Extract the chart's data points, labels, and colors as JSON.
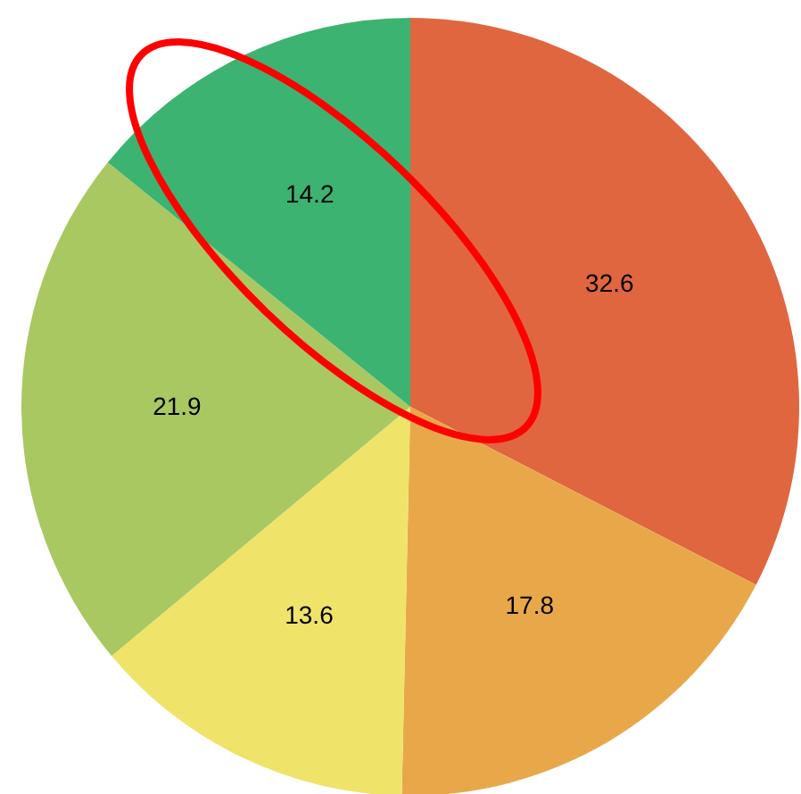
{
  "chart_data": {
    "type": "pie",
    "categories": [
      null,
      null,
      null,
      null,
      null
    ],
    "values": [
      32.6,
      17.8,
      13.6,
      21.9,
      14.2
    ],
    "colors": [
      "#e0663f",
      "#e8a84a",
      "#f0e36a",
      "#a9c862",
      "#3db371"
    ],
    "data_labels": true
  }
}
